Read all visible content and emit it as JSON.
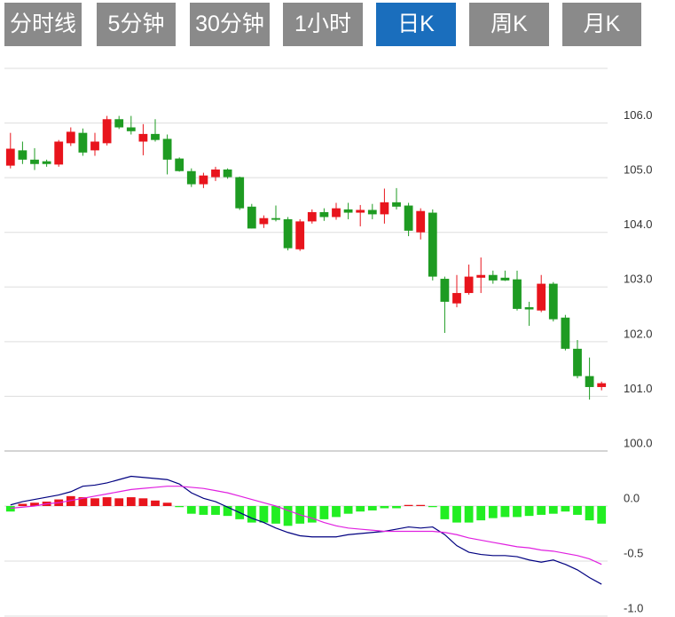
{
  "tabs": [
    "分时线",
    "5分钟",
    "30分钟",
    "1小时",
    "日K",
    "周K",
    "月K"
  ],
  "active_tab": 4,
  "chart_data": [
    {
      "type": "candlestick",
      "up_color": "#e8141c",
      "down_color": "#1e9b22",
      "open": [
        105.22,
        105.5,
        105.33,
        105.3,
        105.24,
        105.63,
        105.82,
        105.5,
        105.63,
        106.07,
        105.92,
        105.66,
        105.8,
        105.71,
        105.35,
        105.12,
        104.88,
        105.01,
        105.15,
        105.01,
        104.47,
        104.15,
        104.26,
        104.24,
        103.69,
        104.2,
        104.37,
        104.28,
        104.42,
        104.36,
        104.41,
        104.33,
        104.55,
        104.49,
        104.0,
        104.36,
        103.15,
        102.7,
        102.89,
        103.17,
        103.22,
        103.17,
        103.14,
        102.63,
        102.57,
        103.06,
        102.44,
        101.87,
        101.37,
        101.17
      ],
      "high": [
        105.82,
        105.66,
        105.54,
        105.33,
        105.69,
        105.92,
        105.9,
        105.82,
        106.13,
        106.13,
        106.13,
        105.98,
        106.07,
        105.79,
        105.37,
        105.17,
        105.09,
        105.2,
        105.17,
        105.02,
        104.52,
        104.31,
        104.49,
        104.28,
        104.24,
        104.42,
        104.44,
        104.54,
        104.54,
        104.5,
        104.52,
        104.8,
        104.81,
        104.54,
        104.44,
        104.42,
        103.19,
        103.22,
        103.41,
        103.54,
        103.3,
        103.3,
        103.3,
        102.73,
        103.22,
        103.09,
        102.49,
        102.03,
        101.71,
        101.27
      ],
      "low": [
        105.17,
        105.25,
        105.14,
        105.2,
        105.2,
        105.58,
        105.4,
        105.4,
        105.59,
        105.89,
        105.79,
        105.41,
        105.66,
        105.06,
        105.11,
        104.83,
        104.81,
        104.94,
        104.98,
        104.41,
        104.07,
        104.08,
        104.2,
        103.67,
        103.66,
        104.16,
        104.21,
        104.23,
        104.24,
        104.11,
        104.24,
        104.16,
        104.42,
        103.93,
        103.87,
        103.12,
        102.16,
        102.63,
        102.86,
        102.89,
        103.06,
        103.11,
        102.57,
        102.29,
        102.54,
        102.37,
        101.84,
        101.33,
        100.94,
        101.11
      ],
      "close": [
        105.53,
        105.33,
        105.25,
        105.25,
        105.66,
        105.84,
        105.46,
        105.66,
        106.07,
        105.92,
        105.85,
        105.8,
        105.69,
        105.33,
        105.12,
        104.88,
        105.04,
        105.15,
        105.01,
        104.44,
        104.07,
        104.26,
        104.23,
        103.71,
        104.2,
        104.37,
        104.28,
        104.44,
        104.36,
        104.41,
        104.33,
        104.55,
        104.47,
        104.03,
        104.39,
        103.19,
        102.73,
        102.89,
        103.19,
        103.22,
        103.12,
        103.12,
        102.6,
        102.59,
        103.06,
        102.41,
        101.87,
        101.37,
        101.17,
        101.24
      ],
      "ylim": [
        100,
        107
      ],
      "yticks": [
        {
          "value": 100,
          "label": "100.0"
        },
        {
          "value": 101,
          "label": "101.0"
        },
        {
          "value": 102,
          "label": "102.0"
        },
        {
          "value": 103,
          "label": "103.0"
        },
        {
          "value": 104,
          "label": "104.0"
        },
        {
          "value": 105,
          "label": "105.0"
        },
        {
          "value": 106,
          "label": "106.0"
        }
      ],
      "grid": true
    },
    {
      "type": "macd",
      "histogram": {
        "up_color": "#e8141c",
        "down_color": "#22ee22",
        "values": [
          -0.05,
          0.02,
          0.03,
          0.04,
          0.06,
          0.09,
          0.08,
          0.07,
          0.08,
          0.07,
          0.08,
          0.07,
          0.05,
          0.03,
          -0.01,
          -0.07,
          -0.08,
          -0.08,
          -0.09,
          -0.12,
          -0.15,
          -0.15,
          -0.16,
          -0.18,
          -0.16,
          -0.15,
          -0.12,
          -0.1,
          -0.07,
          -0.05,
          -0.04,
          -0.02,
          -0.02,
          0.01,
          0.01,
          -0.01,
          -0.12,
          -0.15,
          -0.15,
          -0.13,
          -0.11,
          -0.1,
          -0.1,
          -0.09,
          -0.08,
          -0.07,
          -0.05,
          -0.08,
          -0.13,
          -0.16
        ]
      },
      "series": [
        {
          "color": "#000080",
          "values": [
            0.01,
            0.04,
            0.06,
            0.08,
            0.1,
            0.13,
            0.18,
            0.19,
            0.21,
            0.24,
            0.27,
            0.26,
            0.25,
            0.24,
            0.2,
            0.12,
            0.07,
            0.04,
            -0.01,
            -0.06,
            -0.11,
            -0.15,
            -0.2,
            -0.24,
            -0.27,
            -0.28,
            -0.28,
            -0.28,
            -0.26,
            -0.25,
            -0.24,
            -0.23,
            -0.21,
            -0.19,
            -0.2,
            -0.19,
            -0.26,
            -0.36,
            -0.42,
            -0.44,
            -0.45,
            -0.45,
            -0.46,
            -0.49,
            -0.51,
            -0.49,
            -0.53,
            -0.58,
            -0.65,
            -0.71
          ]
        },
        {
          "color": "#e020e0",
          "values": [
            -0.02,
            -0.01,
            0.0,
            0.02,
            0.03,
            0.05,
            0.07,
            0.09,
            0.11,
            0.13,
            0.15,
            0.16,
            0.17,
            0.18,
            0.18,
            0.17,
            0.16,
            0.14,
            0.12,
            0.09,
            0.06,
            0.03,
            0.0,
            -0.04,
            -0.08,
            -0.11,
            -0.15,
            -0.18,
            -0.2,
            -0.21,
            -0.22,
            -0.23,
            -0.23,
            -0.23,
            -0.23,
            -0.23,
            -0.24,
            -0.26,
            -0.29,
            -0.31,
            -0.33,
            -0.35,
            -0.37,
            -0.38,
            -0.4,
            -0.41,
            -0.43,
            -0.45,
            -0.48,
            -0.53
          ]
        }
      ],
      "ylim": [
        -1.0,
        0.5
      ],
      "yticks": [
        {
          "value": -1.0,
          "label": "-1.0"
        },
        {
          "value": -0.5,
          "label": "-0.5"
        },
        {
          "value": 0,
          "label": "0.0"
        }
      ],
      "grid": true
    }
  ]
}
